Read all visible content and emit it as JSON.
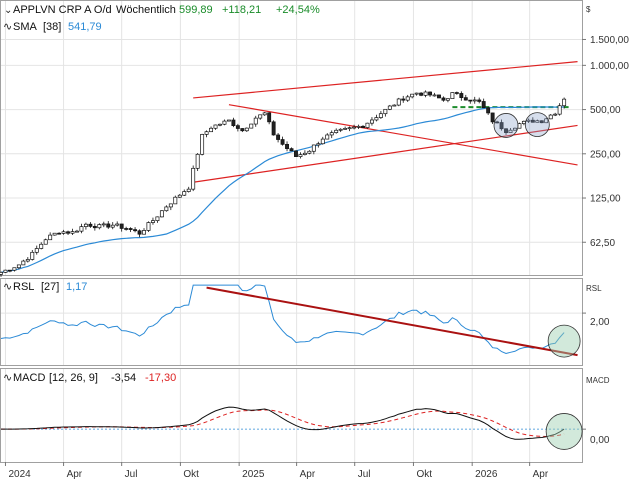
{
  "chart_data": {
    "type": "candlestick",
    "x_labels": [
      "2024",
      "Apr",
      "Jul",
      "Okt",
      "2025",
      "Apr",
      "Jul",
      "Okt",
      "2026",
      "Apr"
    ],
    "price_panel": {
      "title": "APPLVN CRP A O/d",
      "interval": "Wöchentlich",
      "last": "599,89",
      "change": "+118,21",
      "change_pct": "+24,54%",
      "currency": "$",
      "scale": "log",
      "y_ticks": [
        {
          "value": 1500,
          "label": "1.500,00"
        },
        {
          "value": 1000,
          "label": "1.000,00"
        },
        {
          "value": 500,
          "label": "500,00"
        },
        {
          "value": 250,
          "label": "250,00"
        },
        {
          "value": 125,
          "label": "125,00"
        },
        {
          "value": 62.5,
          "label": "62,50"
        }
      ],
      "ylim": [
        38,
        2100
      ],
      "sma": {
        "legend": "SMA",
        "period": "[38]",
        "value": "541,79",
        "color": "#2b8ad6"
      },
      "colors": {
        "up": "#ffffff",
        "down": "#222222",
        "outline": "#111111",
        "trend": "#dd2222",
        "support": "#1c8c2c"
      },
      "candles_ohlc_weekly": [],
      "trend_lines": [
        {
          "name": "channel-upper",
          "from": [
            "2024-10-21",
            600
          ],
          "to": [
            "2026-06-15",
            1060
          ]
        },
        {
          "name": "channel-lower",
          "from": [
            "2024-10-21",
            160
          ],
          "to": [
            "2026-06-15",
            390
          ]
        },
        {
          "name": "falling-line",
          "from": [
            "2024-12-16",
            540
          ],
          "to": [
            "2026-06-15",
            210
          ]
        },
        {
          "name": "support-level",
          "from": [
            "2025-12-01",
            520
          ],
          "to": [
            "2026-06-01",
            520
          ]
        }
      ]
    },
    "rsl_panel": {
      "legend": "RSL",
      "period": "[27]",
      "value": "1,17",
      "y_ticks": [
        {
          "value": 2.0,
          "label": "2,00"
        }
      ],
      "ylim": [
        0.0,
        3.3
      ],
      "axis_caption": "RSL",
      "trend_line": {
        "from": [
          "2024-11-11",
          3.0
        ],
        "to": [
          "2026-06-15",
          0.35
        ]
      }
    },
    "macd_panel": {
      "legend": "MACD",
      "params": "[12, 26, 9]",
      "value": "-3,54",
      "signal": "-17,30",
      "y_ticks": [
        {
          "value": 0,
          "label": "0,00"
        }
      ],
      "ylim": [
        -70,
        130
      ],
      "axis_caption": "MACD"
    }
  }
}
